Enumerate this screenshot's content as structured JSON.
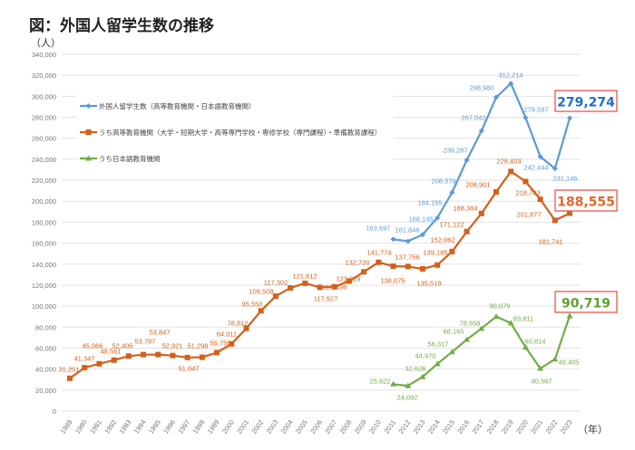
{
  "chart_data": {
    "type": "line",
    "title": "図：外国人留学生数の推移",
    "ylabel": "（人）",
    "xlabel": "（年）",
    "ylim": [
      0,
      340000
    ],
    "ytick_step": 20000,
    "yticks": [
      "0",
      "20,000",
      "40,000",
      "60,000",
      "80,000",
      "100,000",
      "120,000",
      "140,000",
      "160,000",
      "180,000",
      "200,000",
      "220,000",
      "240,000",
      "260,000",
      "280,000",
      "300,000",
      "320,000",
      "340,000"
    ],
    "grid": true,
    "legend_position": "top-left",
    "x": [
      1989,
      1990,
      1991,
      1992,
      1993,
      1994,
      1995,
      1996,
      1997,
      1998,
      1999,
      2000,
      2001,
      2002,
      2003,
      2004,
      2005,
      2006,
      2007,
      2008,
      2009,
      2010,
      2011,
      2012,
      2013,
      2014,
      2015,
      2016,
      2017,
      2018,
      2019,
      2020,
      2021,
      2022,
      2023
    ],
    "series": [
      {
        "name": "外国人留学生数（高等教育機関・日本語教育機関）",
        "color": "#5B9BD5",
        "marker": "diamond",
        "values": [
          null,
          null,
          null,
          null,
          null,
          null,
          null,
          null,
          null,
          null,
          null,
          null,
          null,
          null,
          null,
          null,
          null,
          null,
          null,
          null,
          null,
          null,
          163697,
          161848,
          168145,
          184155,
          208379,
          239287,
          267042,
          298980,
          312214,
          279597,
          242444,
          231146,
          279274
        ],
        "labels": [
          "",
          "",
          "",
          "",
          "",
          "",
          "",
          "",
          "",
          "",
          "",
          "",
          "",
          "",
          "",
          "",
          "",
          "",
          "",
          "",
          "",
          "",
          "163,697",
          "161,848",
          "168,145",
          "184,155",
          "208,379",
          "239,287",
          "267,042",
          "298,980",
          "312,214",
          "279,597",
          "242,444",
          "231,146",
          ""
        ],
        "callout": "279,274",
        "callout_color": "#1F6FC5"
      },
      {
        "name": "うち高等教育機関（大学・短期大学・高等専門学校・専修学校（専門課程）・準備教育課程）",
        "color": "#D4601B",
        "marker": "square",
        "values": [
          31251,
          41347,
          45066,
          48561,
          52405,
          53787,
          53847,
          52921,
          51047,
          51298,
          55755,
          64011,
          78812,
          95550,
          109508,
          117302,
          121812,
          117927,
          118498,
          123829,
          132720,
          141774,
          138075,
          137756,
          135519,
          139185,
          152062,
          171122,
          188384,
          208901,
          228403,
          218783,
          201877,
          181741,
          188555
        ],
        "labels": [
          "31,251",
          "41,347",
          "45,066",
          "48,561",
          "52,405",
          "53,787",
          "53,847",
          "52,921",
          "51,047",
          "51,298",
          "55,755",
          "64,011",
          "78,812",
          "95,550",
          "109,508",
          "117,302",
          "121,812",
          "117,927",
          "118,498",
          "123,829",
          "132,720",
          "141,774",
          "138,075",
          "137,756",
          "135,519",
          "139,185",
          "152,062",
          "171,122",
          "188,384",
          "208,901",
          "228,403",
          "218,783",
          "201,877",
          "181,741",
          ""
        ],
        "callout": "188,555",
        "callout_color": "#E0662A"
      },
      {
        "name": "うち日本語教育機関",
        "color": "#70AD47",
        "marker": "triangle",
        "values": [
          null,
          null,
          null,
          null,
          null,
          null,
          null,
          null,
          null,
          null,
          null,
          null,
          null,
          null,
          null,
          null,
          null,
          null,
          null,
          null,
          null,
          null,
          25622,
          24092,
          32626,
          44970,
          56317,
          68165,
          78658,
          90079,
          83811,
          60814,
          40567,
          49405,
          90719
        ],
        "labels": [
          "",
          "",
          "",
          "",
          "",
          "",
          "",
          "",
          "",
          "",
          "",
          "",
          "",
          "",
          "",
          "",
          "",
          "",
          "",
          "",
          "",
          "",
          "25,622",
          "24,092",
          "32,626",
          "44,970",
          "56,317",
          "68,165",
          "78,658",
          "90,079",
          "83,811",
          "60,814",
          "40,567",
          "49,405",
          ""
        ],
        "callout": "90,719",
        "callout_color": "#5FA034"
      }
    ],
    "callout_border_color": "#E8483F"
  }
}
